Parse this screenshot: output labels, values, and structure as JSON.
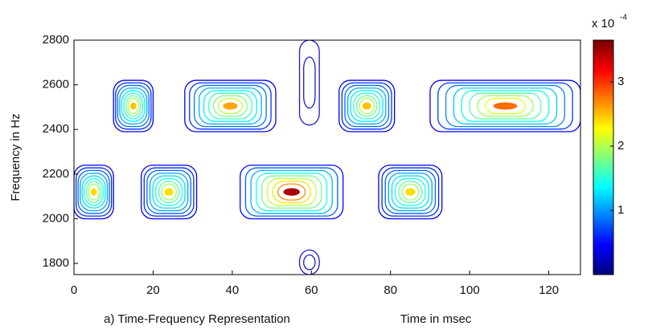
{
  "chart_data": {
    "type": "contour",
    "xlabel": "Time in msec",
    "caption": "a) Time-Frequency Representation",
    "ylabel": "Frequency in Hz",
    "xlim": [
      0,
      128
    ],
    "xticks": [
      0,
      20,
      40,
      60,
      80,
      100,
      120
    ],
    "ylim": [
      1750,
      2800
    ],
    "yticks": [
      1800,
      2000,
      2200,
      2400,
      2600,
      2800
    ],
    "colorbar_label": "x 10",
    "colorbar_exponent": "-4",
    "clim": [
      0,
      0.000365
    ],
    "cticks": [
      {
        "value": 0.0001,
        "label": "1"
      },
      {
        "value": 0.0002,
        "label": "2"
      },
      {
        "value": 0.0003,
        "label": "3"
      }
    ],
    "colormap": "jet",
    "components": [
      {
        "t": [
          10,
          20
        ],
        "f": [
          2390,
          2620
        ],
        "peak": 0.00025
      },
      {
        "t": [
          28,
          51
        ],
        "f": [
          2390,
          2620
        ],
        "peak": 0.00026
      },
      {
        "t": [
          67,
          81
        ],
        "f": [
          2390,
          2620
        ],
        "peak": 0.00025
      },
      {
        "t": [
          90,
          128
        ],
        "f": [
          2390,
          2620
        ],
        "peak": 0.00028
      },
      {
        "t": [
          0,
          10
        ],
        "f": [
          2000,
          2240
        ],
        "peak": 0.00024
      },
      {
        "t": [
          17,
          31
        ],
        "f": [
          2000,
          2240
        ],
        "peak": 0.00024
      },
      {
        "t": [
          42,
          68
        ],
        "f": [
          2000,
          2240
        ],
        "peak": 0.00035
      },
      {
        "t": [
          77,
          93
        ],
        "f": [
          2000,
          2240
        ],
        "peak": 0.00024
      },
      {
        "t": [
          57,
          62
        ],
        "f": [
          1750,
          1860
        ],
        "peak": 2e-05
      },
      {
        "t": [
          57,
          62
        ],
        "f": [
          2420,
          2800
        ],
        "peak": 2e-05
      }
    ]
  }
}
